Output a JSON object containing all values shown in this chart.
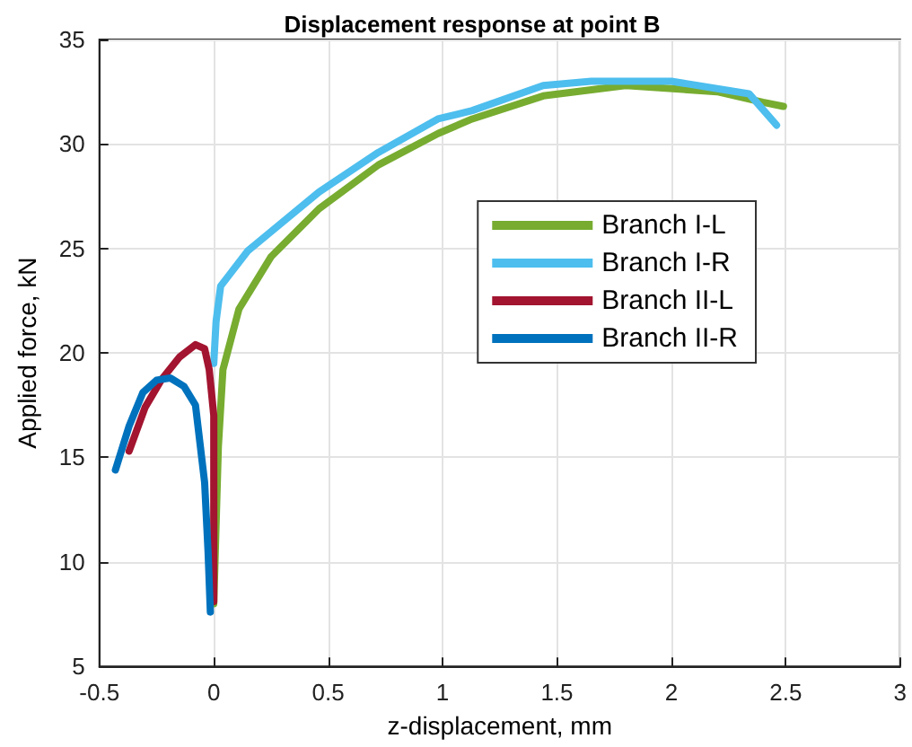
{
  "chart_data": {
    "type": "line",
    "title": "Displacement response at point B",
    "xlabel": "z-displacement, mm",
    "ylabel": "Applied force, kN",
    "xlim": [
      -0.5,
      3
    ],
    "xticks": [
      -0.5,
      0,
      0.5,
      1,
      1.5,
      2,
      2.5,
      3
    ],
    "ylim": [
      5,
      35
    ],
    "yticks": [
      5,
      10,
      15,
      20,
      25,
      30,
      35
    ],
    "grid": true,
    "legend": "right",
    "line_style": "solid",
    "marker": "none",
    "series": [
      {
        "name": "Branch I-L",
        "color": "#77ac30",
        "x": [
          0,
          0.02,
          0.04,
          0.11,
          0.25,
          0.46,
          0.72,
          0.98,
          1.13,
          1.44,
          1.8,
          2.2,
          2.4,
          2.49
        ],
        "values": [
          8.0,
          15.5,
          19.2,
          22.1,
          24.6,
          26.9,
          29.0,
          30.5,
          31.2,
          32.3,
          32.8,
          32.5,
          32.0,
          31.8
        ]
      },
      {
        "name": "Branch I-R",
        "color": "#4dbeee",
        "x": [
          0,
          0.01,
          0.03,
          0.15,
          0.46,
          0.72,
          0.98,
          1.13,
          1.44,
          1.65,
          2.0,
          2.34,
          2.46
        ],
        "values": [
          19.5,
          21.5,
          23.2,
          24.9,
          27.7,
          29.6,
          31.2,
          31.6,
          32.8,
          33.0,
          33.0,
          32.4,
          30.9
        ]
      },
      {
        "name": "Branch II-L",
        "color": "#a2142f",
        "x": [
          -0.37,
          -0.3,
          -0.23,
          -0.15,
          -0.08,
          -0.04,
          -0.02,
          0,
          0,
          0
        ],
        "values": [
          15.3,
          17.4,
          18.7,
          19.8,
          20.4,
          20.2,
          19.2,
          17.0,
          15.3,
          8.1
        ]
      },
      {
        "name": "Branch II-R",
        "color": "#0072bd",
        "x": [
          -0.43,
          -0.37,
          -0.31,
          -0.25,
          -0.19,
          -0.13,
          -0.08,
          -0.04,
          -0.025,
          -0.015
        ],
        "values": [
          14.4,
          16.5,
          18.1,
          18.7,
          18.8,
          18.4,
          17.5,
          13.8,
          10.5,
          7.6
        ]
      }
    ]
  }
}
